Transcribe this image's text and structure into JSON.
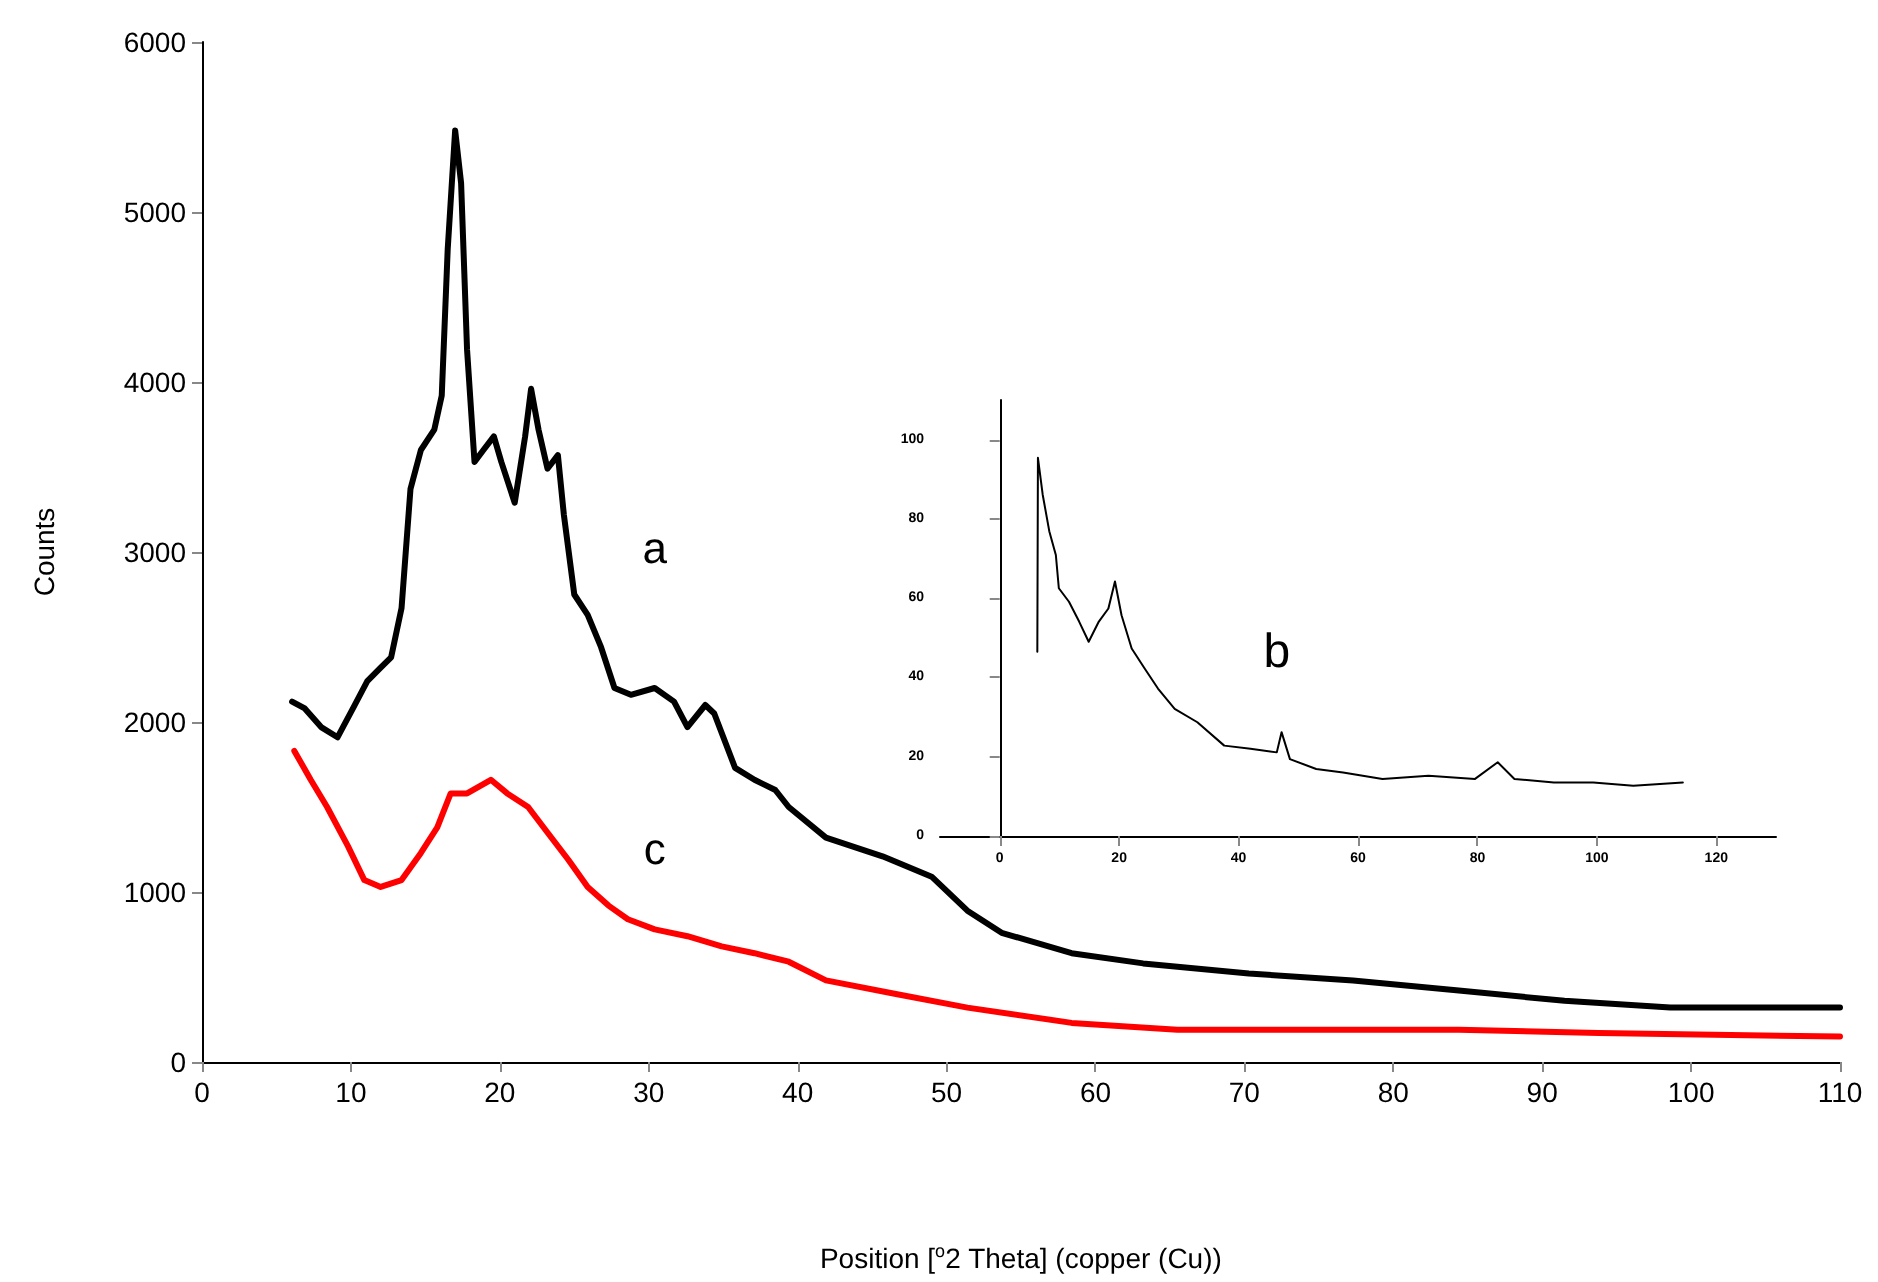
{
  "chart_data": [
    {
      "type": "line",
      "xlabel": "Position [$^{o}$2 Theta] (copper (Cu))",
      "ylabel": "Counts",
      "xlim": [
        0,
        110
      ],
      "xticks": [
        0,
        10,
        20,
        30,
        40,
        50,
        60,
        70,
        80,
        90,
        100,
        110
      ],
      "ylim": [
        0,
        6000
      ],
      "yticks": [
        0,
        1000,
        2000,
        3000,
        4000,
        5000,
        6000
      ],
      "marker": "none",
      "line_style": "solid",
      "series": [
        {
          "name": "a",
          "color": "#000000",
          "x": [
            6.05,
            6.9,
            8.0,
            9.1,
            10.2,
            11.1,
            12.0,
            12.7,
            13.4,
            14.0,
            14.7,
            15.6,
            16.1,
            16.5,
            17.0,
            17.4,
            17.8,
            18.3,
            18.9,
            19.6,
            20.1,
            21.0,
            21.7,
            22.1,
            22.6,
            23.2,
            23.9,
            24.3,
            25.0,
            25.9,
            26.8,
            27.7,
            28.8,
            30.4,
            31.7,
            32.6,
            33.8,
            34.4,
            35.8,
            37.1,
            38.5,
            39.4,
            41.9,
            45.7,
            49.0,
            51.4,
            53.7,
            58.4,
            63.2,
            70.3,
            77.3,
            84.4,
            91.5,
            98.6,
            110
          ],
          "values": [
            2120,
            2080,
            1970,
            1910,
            2090,
            2240,
            2320,
            2380,
            2670,
            3370,
            3600,
            3720,
            3920,
            4780,
            5480,
            5170,
            4190,
            3530,
            3600,
            3680,
            3530,
            3290,
            3680,
            3960,
            3720,
            3490,
            3570,
            3220,
            2750,
            2630,
            2440,
            2200,
            2160,
            2200,
            2120,
            1970,
            2100,
            2050,
            1730,
            1660,
            1600,
            1500,
            1320,
            1210,
            1090,
            890,
            760,
            640,
            580,
            520,
            480,
            420,
            360,
            320,
            320
          ]
        },
        {
          "name": "c",
          "color": "#ff0000",
          "x": [
            6.2,
            7.3,
            8.4,
            9.8,
            10.9,
            12.0,
            13.4,
            14.7,
            15.8,
            16.7,
            17.8,
            19.4,
            20.5,
            21.9,
            23.2,
            24.6,
            25.9,
            27.3,
            28.6,
            30.4,
            32.6,
            34.9,
            37.1,
            39.4,
            41.9,
            46.6,
            51.4,
            58.4,
            65.5,
            74.9,
            84.4,
            93.8,
            110
          ],
          "values": [
            1830,
            1660,
            1500,
            1270,
            1070,
            1030,
            1070,
            1230,
            1380,
            1580,
            1580,
            1660,
            1580,
            1500,
            1350,
            1190,
            1030,
            920,
            840,
            780,
            740,
            680,
            640,
            590,
            480,
            400,
            320,
            230,
            190,
            190,
            190,
            170,
            150
          ]
        }
      ]
    },
    {
      "type": "line",
      "xlim": [
        -10,
        130
      ],
      "xticks": [
        0,
        20,
        40,
        60,
        80,
        100,
        120
      ],
      "ylim": [
        0,
        110
      ],
      "yticks": [
        0,
        20,
        40,
        60,
        80,
        100
      ],
      "marker": "none",
      "line_style": "solid",
      "series": [
        {
          "name": "b",
          "color": "#000000",
          "x": [
            6.3,
            6.4,
            7.2,
            8.3,
            9.4,
            9.9,
            11.6,
            13.3,
            14.9,
            16.6,
            18.2,
            19.3,
            20.4,
            22.1,
            24.3,
            26.5,
            29.3,
            33.1,
            37.6,
            42.0,
            46.4,
            47.2,
            48.6,
            53.0,
            57.5,
            64.1,
            71.8,
            79.6,
            83.4,
            86.2,
            92.8,
            99.4,
            106.1,
            114.4
          ],
          "values": [
            46.5,
            95.4,
            86.1,
            76.9,
            70.9,
            62.5,
            59.1,
            54.1,
            49.0,
            54.1,
            57.4,
            64.2,
            55.7,
            47.3,
            42.2,
            37.2,
            32.1,
            28.7,
            22.8,
            22.0,
            21.1,
            26.2,
            19.4,
            16.9,
            16.0,
            14.4,
            15.2,
            14.4,
            18.6,
            14.4,
            13.5,
            13.5,
            12.7,
            13.5
          ]
        }
      ]
    }
  ]
}
